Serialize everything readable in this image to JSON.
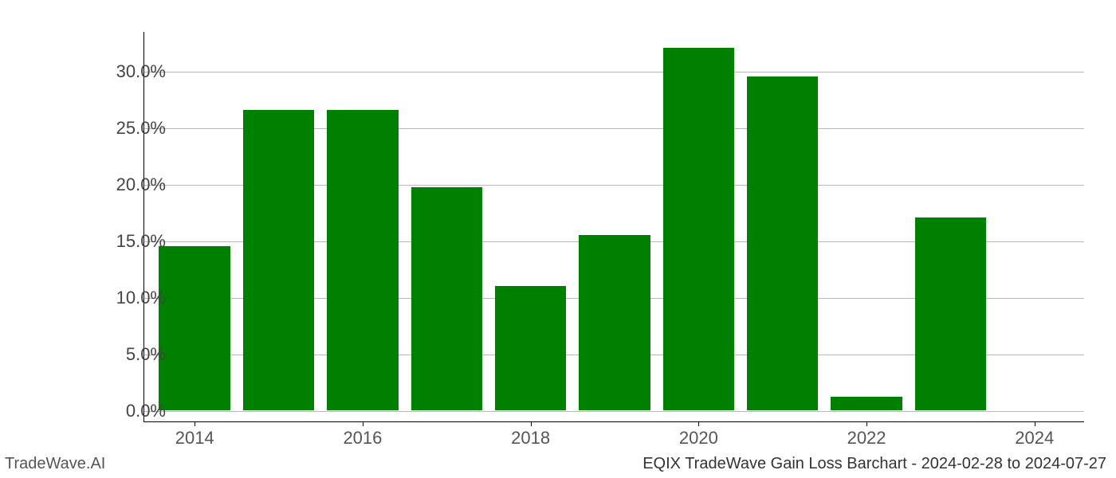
{
  "chart": {
    "type": "bar",
    "years": [
      2014,
      2015,
      2016,
      2017,
      2018,
      2019,
      2020,
      2021,
      2022,
      2023,
      2024
    ],
    "values": [
      14.5,
      26.5,
      26.5,
      19.7,
      11.0,
      15.5,
      32.0,
      29.5,
      1.2,
      17.0,
      0.0
    ],
    "bar_color": "#008000",
    "background_color": "#ffffff",
    "grid_color": "#b8b8b8",
    "axis_color": "#000000",
    "y_ticks": [
      0,
      5,
      10,
      15,
      20,
      25,
      30
    ],
    "y_tick_labels": [
      "0.0%",
      "5.0%",
      "10.0%",
      "15.0%",
      "20.0%",
      "25.0%",
      "30.0%"
    ],
    "ylim": [
      -1.0,
      33.5
    ],
    "x_tick_years": [
      2014,
      2016,
      2018,
      2020,
      2022,
      2024
    ],
    "x_tick_labels": [
      "2014",
      "2016",
      "2018",
      "2020",
      "2022",
      "2024"
    ],
    "xlim": [
      2013.4,
      2024.6
    ],
    "bar_width_years": 0.85,
    "tick_fontsize": 22,
    "footer_fontsize": 20
  },
  "footer": {
    "left": "TradeWave.AI",
    "right": "EQIX TradeWave Gain Loss Barchart - 2024-02-28 to 2024-07-27"
  }
}
